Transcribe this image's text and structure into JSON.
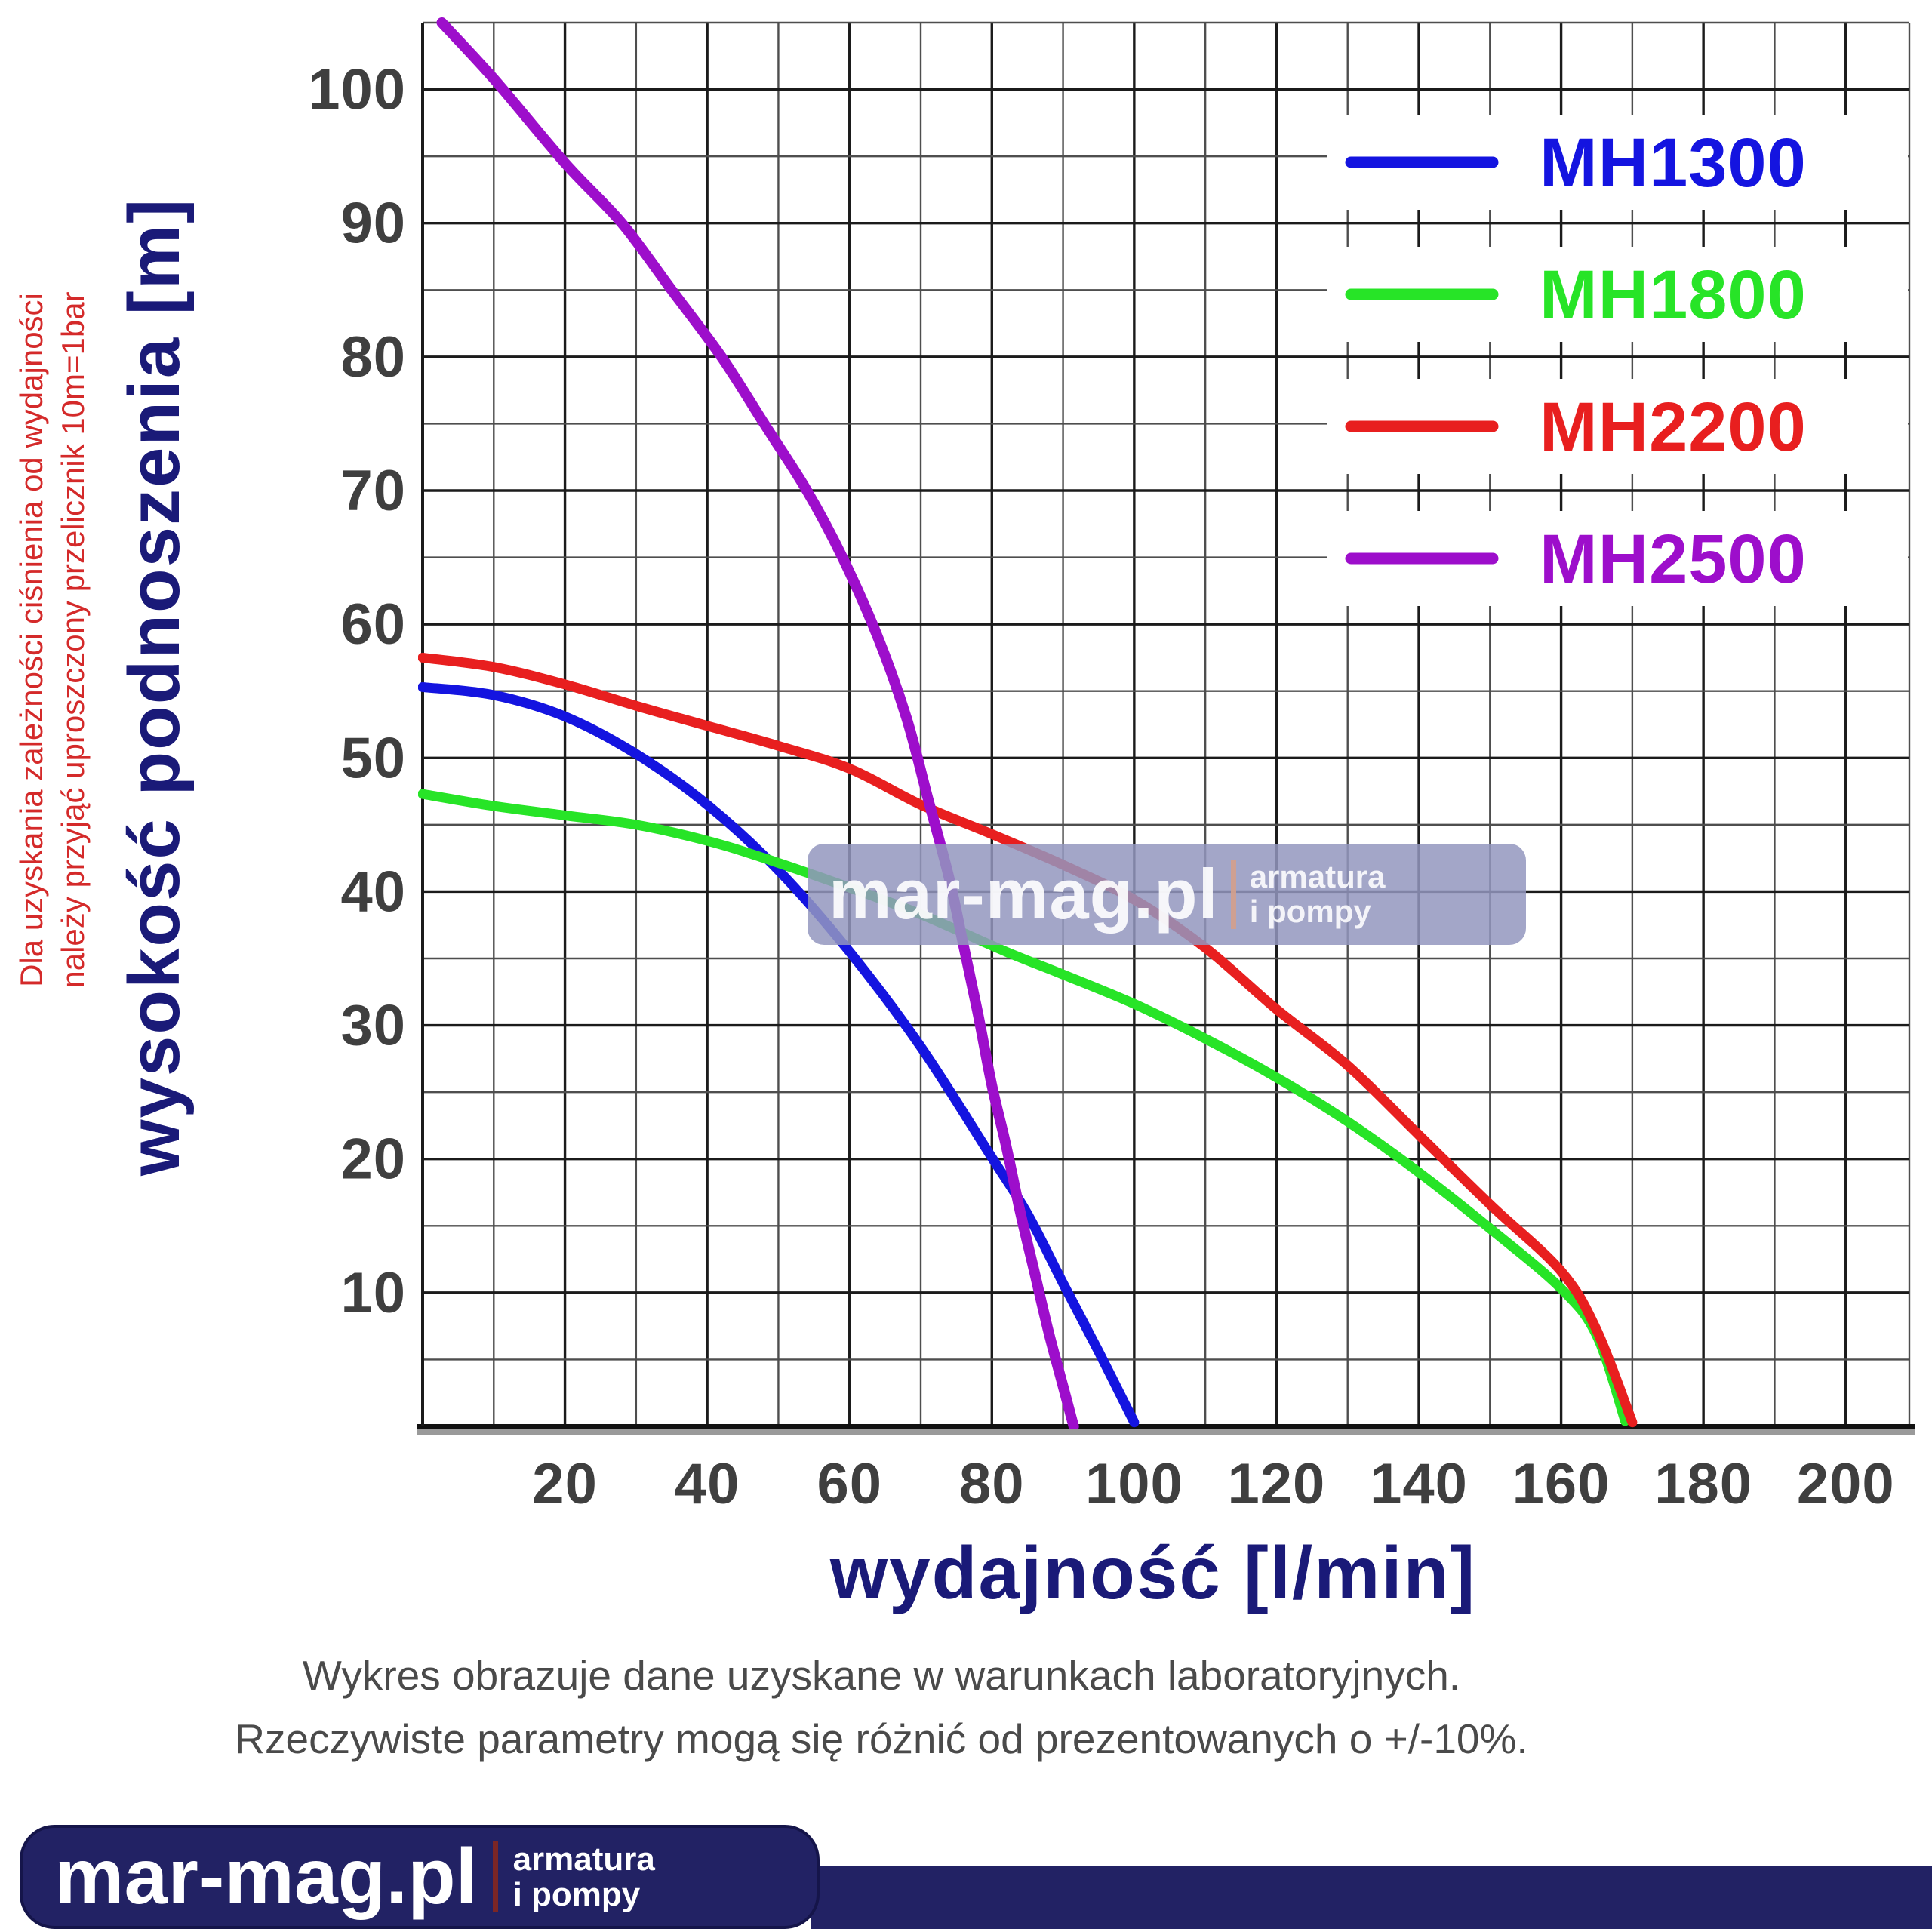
{
  "side_note": {
    "line1": "Dla uzyskania zależności ciśnienia od wydajności",
    "line2": "należy przyjąć uproszczony przelicznik 10m=1bar"
  },
  "axes": {
    "y_label": "wysokość podnoszenia [m]",
    "x_label": "wydajność [l/min]",
    "x_ticks": [
      20,
      40,
      60,
      80,
      100,
      120,
      140,
      160,
      180,
      200
    ],
    "y_ticks": [
      10,
      20,
      30,
      40,
      50,
      60,
      70,
      80,
      90,
      100
    ]
  },
  "legend": {
    "position": "top-right",
    "items": [
      {
        "label": "MH1300",
        "color": "#1414e0"
      },
      {
        "label": "MH1800",
        "color": "#27e427"
      },
      {
        "label": "MH2200",
        "color": "#e81f1f"
      },
      {
        "label": "MH2500",
        "color": "#9d0ecb"
      }
    ]
  },
  "chart_data": {
    "type": "line",
    "title": "",
    "xlabel": "wydajność [l/min]",
    "ylabel": "wysokość podnoszenia [m]",
    "xlim": [
      0,
      209
    ],
    "ylim": [
      0,
      105
    ],
    "x_minor_step": 10,
    "x_major_step": 20,
    "y_minor_step": 5,
    "y_major_step": 10,
    "grid": true,
    "series": [
      {
        "name": "MH1300",
        "color": "#1414e0",
        "points": [
          [
            0,
            55.3
          ],
          [
            10,
            54.7
          ],
          [
            20,
            53.1
          ],
          [
            30,
            50.3
          ],
          [
            40,
            46.5
          ],
          [
            50,
            41.6
          ],
          [
            60,
            35.5
          ],
          [
            70,
            28.4
          ],
          [
            80,
            20.1
          ],
          [
            85,
            15.9
          ],
          [
            90,
            10.7
          ],
          [
            95,
            5.6
          ],
          [
            100,
            0.3
          ]
        ]
      },
      {
        "name": "MH1800",
        "color": "#27e427",
        "points": [
          [
            0,
            47.3
          ],
          [
            10,
            46.4
          ],
          [
            20,
            45.7
          ],
          [
            30,
            45.0
          ],
          [
            40,
            43.8
          ],
          [
            48,
            42.5
          ],
          [
            60,
            40.3
          ],
          [
            70,
            38.3
          ],
          [
            82,
            35.5
          ],
          [
            90,
            33.8
          ],
          [
            100,
            31.6
          ],
          [
            110,
            29.0
          ],
          [
            120,
            26.1
          ],
          [
            130,
            22.8
          ],
          [
            140,
            19.0
          ],
          [
            150,
            14.8
          ],
          [
            160,
            10.3
          ],
          [
            165,
            6.8
          ],
          [
            169,
            0.4
          ]
        ]
      },
      {
        "name": "MH2200",
        "color": "#e81f1f",
        "points": [
          [
            0,
            57.5
          ],
          [
            10,
            56.8
          ],
          [
            20,
            55.5
          ],
          [
            30,
            53.9
          ],
          [
            40,
            52.4
          ],
          [
            50,
            50.9
          ],
          [
            60,
            49.2
          ],
          [
            70,
            46.5
          ],
          [
            80,
            44.3
          ],
          [
            90,
            42.0
          ],
          [
            100,
            39.4
          ],
          [
            110,
            35.8
          ],
          [
            120,
            31.2
          ],
          [
            130,
            27.0
          ],
          [
            140,
            21.8
          ],
          [
            150,
            16.6
          ],
          [
            160,
            11.6
          ],
          [
            165,
            7.2
          ],
          [
            170,
            0.3
          ]
        ]
      },
      {
        "name": "MH2500",
        "color": "#9d0ecb",
        "points": [
          [
            2.7,
            105
          ],
          [
            10,
            100.8
          ],
          [
            20,
            94.5
          ],
          [
            28,
            90
          ],
          [
            35,
            85
          ],
          [
            42,
            80
          ],
          [
            48,
            75
          ],
          [
            54,
            70
          ],
          [
            59,
            65
          ],
          [
            64,
            59
          ],
          [
            68,
            53
          ],
          [
            71,
            47
          ],
          [
            74,
            41
          ],
          [
            76,
            36
          ],
          [
            78,
            31
          ],
          [
            80,
            25.5
          ],
          [
            82,
            21
          ],
          [
            84,
            16
          ],
          [
            86,
            11.5
          ],
          [
            88,
            7
          ],
          [
            90,
            3
          ],
          [
            91.5,
            0
          ]
        ]
      }
    ]
  },
  "watermark": {
    "main": "mar-mag.pl",
    "right_line1": "armatura",
    "right_line2": "i pompy"
  },
  "footer_note": {
    "line1": "Wykres obrazuje dane uzyskane w warunkach laboratoryjnych.",
    "line2": "Rzeczywiste parametry mogą się różnić od prezentowanych o +/-10%."
  },
  "logo": {
    "main": "mar-mag.pl",
    "right_line1": "armatura",
    "right_line2": "i pompy"
  }
}
